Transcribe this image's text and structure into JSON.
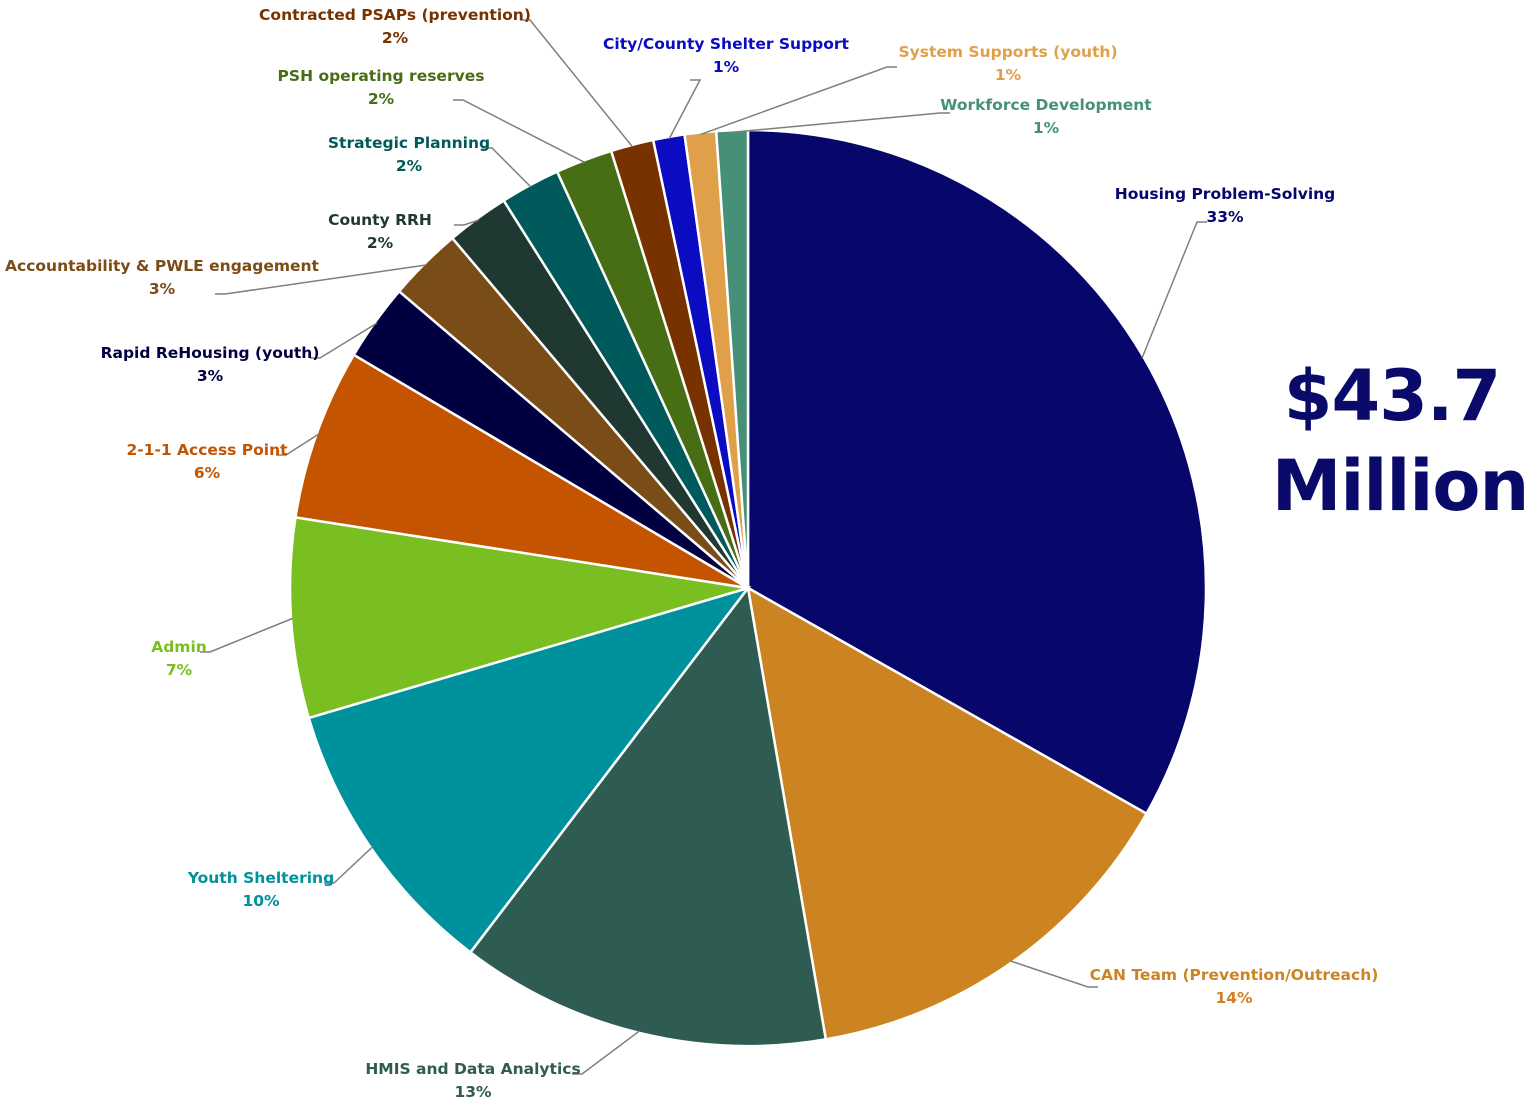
{
  "total": {
    "line1": "$43.7",
    "line2": "Million"
  },
  "chart_data": {
    "type": "pie",
    "title": "",
    "slices": [
      {
        "name": "Housing Problem-Solving",
        "label": "33%",
        "value": 33,
        "color": "#07066b"
      },
      {
        "name": "CAN Team (Prevention/Outreach)",
        "label": "14%",
        "value": 14,
        "color": "#cc8423"
      },
      {
        "name": "HMIS and Data Analytics",
        "label": "13%",
        "value": 13,
        "color": "#2f5c52"
      },
      {
        "name": "Youth Sheltering",
        "label": "10%",
        "value": 10,
        "color": "#00929c"
      },
      {
        "name": "Admin",
        "label": "7%",
        "value": 7,
        "color": "#7abf21"
      },
      {
        "name": "2-1-1 Access Point",
        "label": "6%",
        "value": 6,
        "color": "#c45400"
      },
      {
        "name": "Rapid ReHousing (youth)",
        "label": "3%",
        "value": 2.7,
        "color": "#000040"
      },
      {
        "name": "Accountability & PWLE engagement",
        "label": "3%",
        "value": 2.6,
        "color": "#7a4c17"
      },
      {
        "name": "County RRH",
        "label": "2%",
        "value": 2.2,
        "color": "#1f3831"
      },
      {
        "name": "Strategic Planning",
        "label": "2%",
        "value": 2.1,
        "color": "#005a5c"
      },
      {
        "name": "PSH operating reserves",
        "label": "2%",
        "value": 2.0,
        "color": "#486e15"
      },
      {
        "name": "Contracted PSAPs (prevention)",
        "label": "2%",
        "value": 1.5,
        "color": "#773200"
      },
      {
        "name": "City/County Shelter Support",
        "label": "1%",
        "value": 1.1,
        "color": "#0b0bc2"
      },
      {
        "name": "System Supports (youth)",
        "label": "1%",
        "value": 1.1,
        "color": "#e0a04a"
      },
      {
        "name": "Workforce Development",
        "label": "1%",
        "value": 1.1,
        "color": "#469079"
      }
    ]
  }
}
